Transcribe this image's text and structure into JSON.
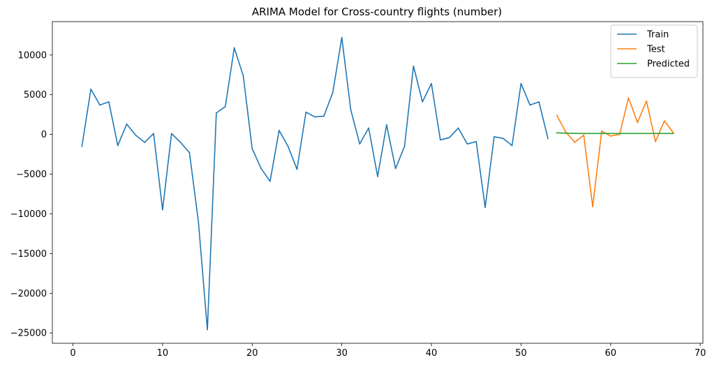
{
  "chart_data": {
    "type": "line",
    "title": "ARIMA Model for Cross-country flights (number)",
    "xlabel": "",
    "ylabel": "",
    "xlim": [
      -2.3,
      70.3
    ],
    "ylim": [
      -26300,
      14200
    ],
    "x_ticks": [
      0,
      10,
      20,
      30,
      40,
      50,
      60,
      70
    ],
    "y_ticks": [
      -25000,
      -20000,
      -15000,
      -10000,
      -5000,
      0,
      5000,
      10000
    ],
    "grid": false,
    "legend_position": "top-right",
    "series": [
      {
        "name": "Train",
        "color": "#1f77b4",
        "x": [
          1,
          2,
          3,
          4,
          5,
          6,
          7,
          8,
          9,
          10,
          11,
          12,
          13,
          14,
          15,
          16,
          17,
          18,
          19,
          20,
          21,
          22,
          23,
          24,
          25,
          26,
          27,
          28,
          29,
          30,
          31,
          32,
          33,
          34,
          35,
          36,
          37,
          38,
          39,
          40,
          41,
          42,
          43,
          44,
          45,
          46,
          47,
          48,
          49,
          50,
          51,
          52,
          53
        ],
        "values": [
          -1500,
          5700,
          3700,
          4100,
          -1400,
          1300,
          -100,
          -1000,
          100,
          -9500,
          100,
          -1000,
          -2300,
          -11000,
          -24600,
          2700,
          3500,
          10900,
          7400,
          -1800,
          -4300,
          -5900,
          500,
          -1500,
          -4400,
          2800,
          2200,
          2300,
          5300,
          12200,
          3100,
          -1200,
          800,
          -5300,
          1200,
          -4300,
          -1500,
          8600,
          4100,
          6400,
          -700,
          -400,
          800,
          -1200,
          -900,
          -9200,
          -300,
          -500,
          -1400,
          6400,
          3700,
          4100,
          -500
        ]
      },
      {
        "name": "Test",
        "color": "#ff7f0e",
        "x": [
          54,
          55,
          56,
          57,
          58,
          59,
          60,
          61,
          62,
          63,
          64,
          65,
          66,
          67
        ],
        "values": [
          2400,
          300,
          -1000,
          -100,
          -9100,
          400,
          -200,
          0,
          4600,
          1500,
          4200,
          -900,
          1700,
          200
        ]
      },
      {
        "name": "Predicted",
        "color": "#2ca02c",
        "x": [
          54,
          55,
          56,
          57,
          58,
          59,
          60,
          61,
          62,
          63,
          64,
          65,
          66,
          67
        ],
        "values": [
          200,
          150,
          130,
          120,
          120,
          120,
          120,
          120,
          120,
          120,
          120,
          120,
          120,
          120
        ]
      }
    ]
  }
}
